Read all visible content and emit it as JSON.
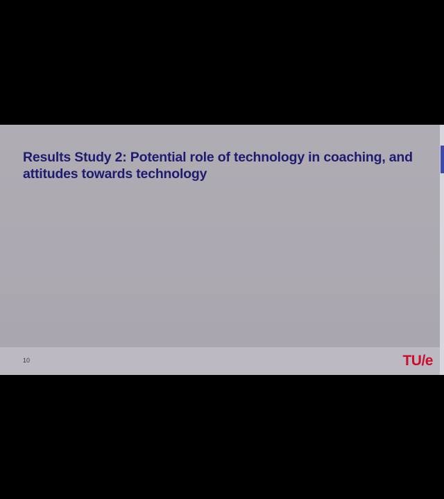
{
  "slide": {
    "title": "Results Study 2: Potential role of technology in coaching, and attitudes towards technology",
    "page_number": "10",
    "logo_text": "TU/e"
  },
  "colors": {
    "background": "#000000",
    "slide_background": "#aaa6ae",
    "title_text": "#1f1b6e",
    "logo": "#c8102e"
  }
}
